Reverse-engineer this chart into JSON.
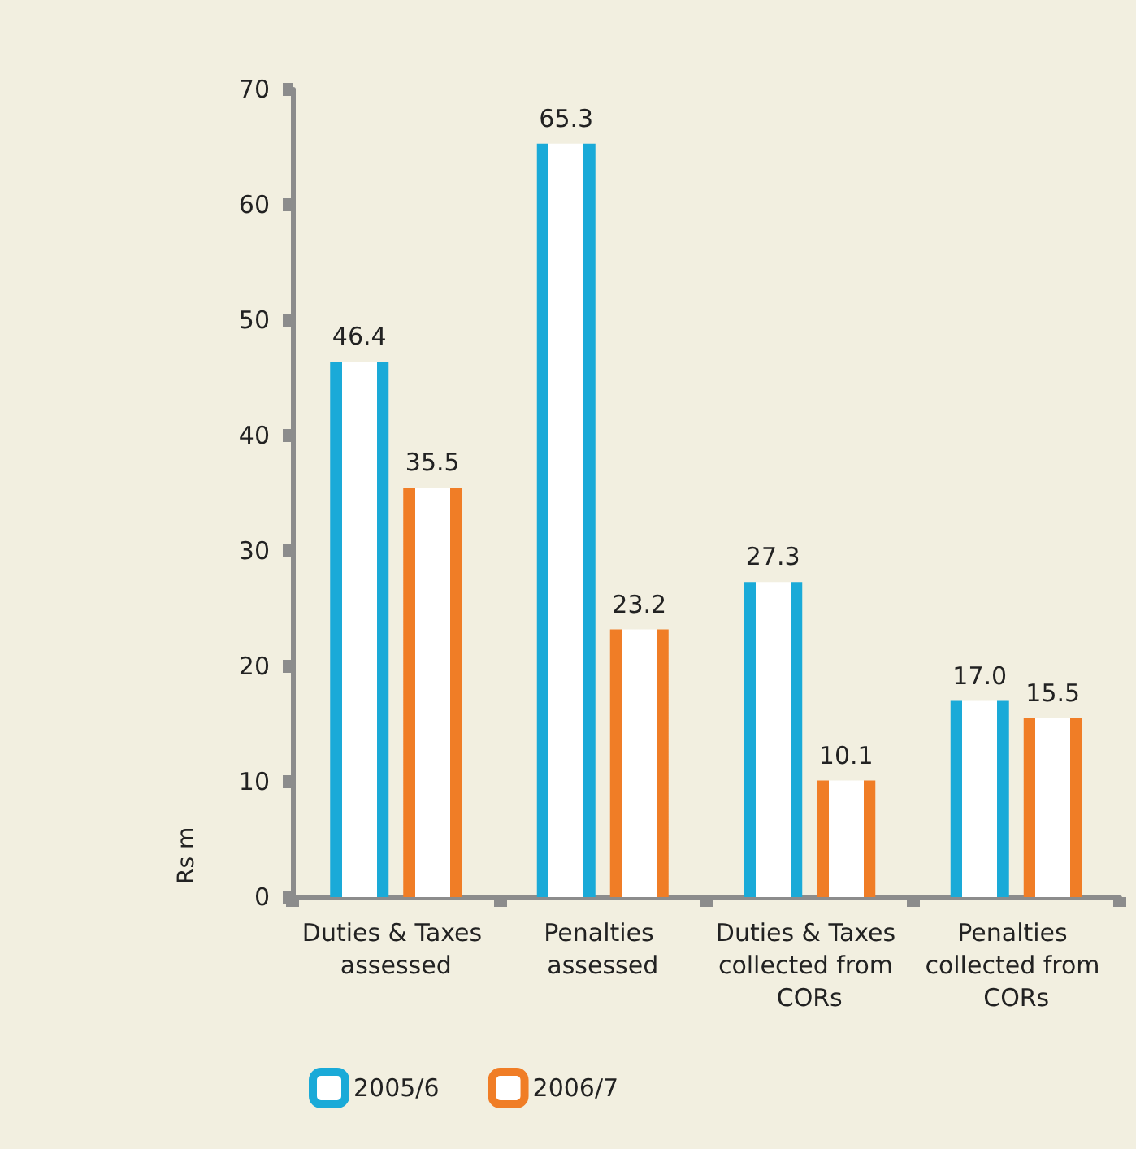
{
  "chart_data": {
    "type": "bar",
    "ylabel": "Rs m",
    "categories": [
      "Duties & Taxes assessed",
      "Penalties assessed",
      "Duties & Taxes collected from CORs",
      "Penalties collected from CORs"
    ],
    "series": [
      {
        "name": "2005/6",
        "color": "#1aaad8",
        "values": [
          46.4,
          65.3,
          27.3,
          17.0
        ]
      },
      {
        "name": "2006/7",
        "color": "#f07d26",
        "values": [
          35.5,
          23.2,
          10.1,
          15.5
        ]
      }
    ],
    "value_labels": [
      [
        "46.4",
        "65.3",
        "27.3",
        "17.0"
      ],
      [
        "35.5",
        "23.2",
        "10.1",
        "15.5"
      ]
    ],
    "ylim": [
      0,
      70
    ],
    "yticks": [
      0,
      10,
      20,
      30,
      40,
      50,
      60,
      70
    ],
    "grid": false,
    "legend": "bottom left"
  }
}
